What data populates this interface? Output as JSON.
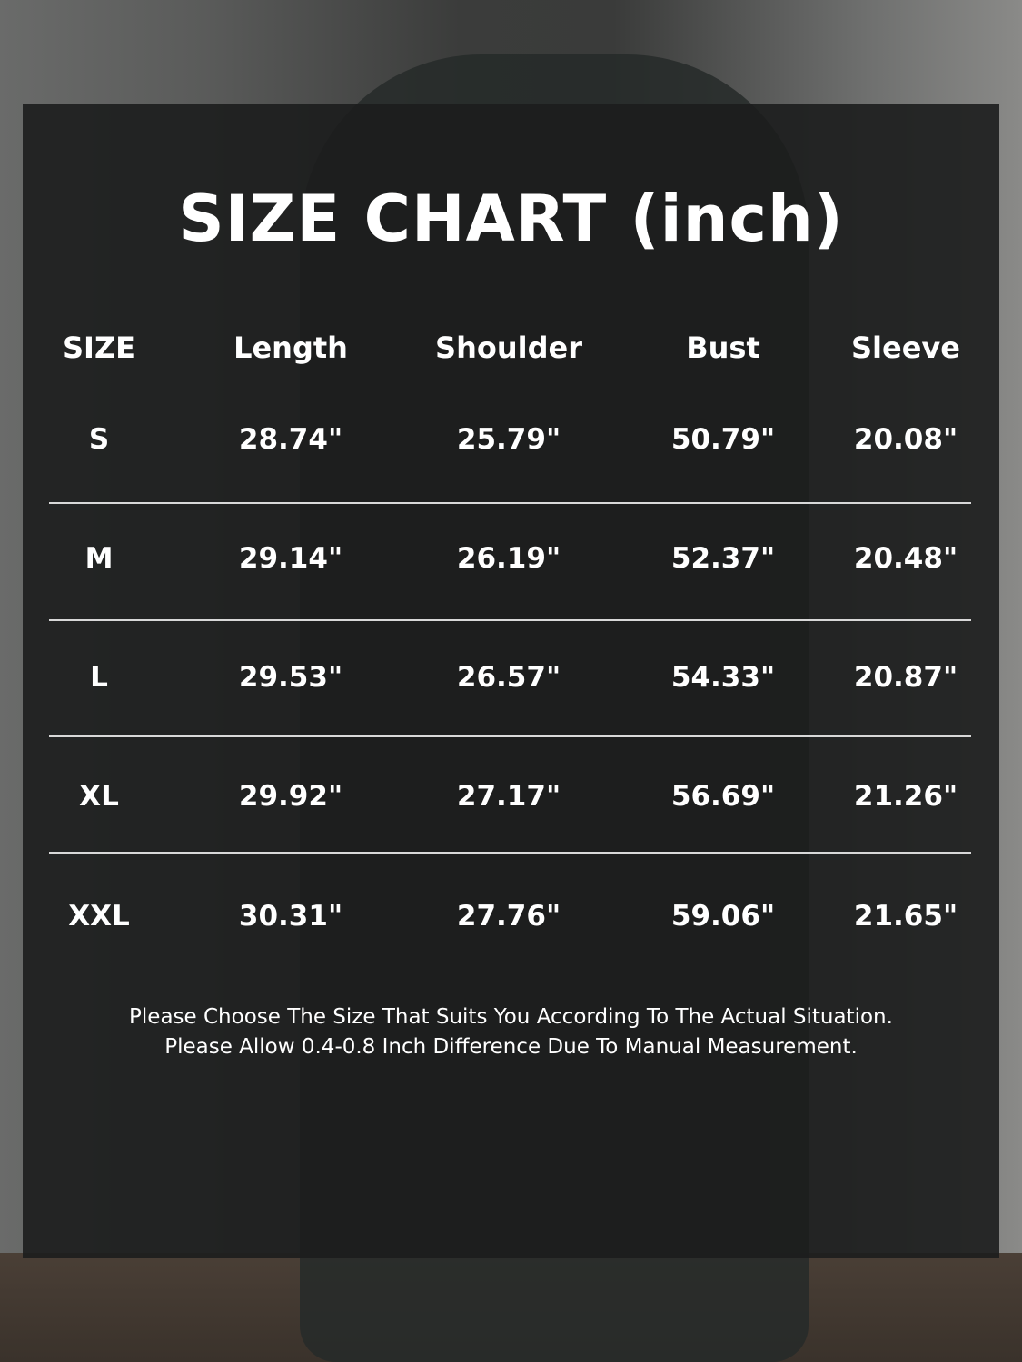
{
  "title": "SIZE CHART (inch)",
  "headers": [
    "SIZE",
    "Length",
    "Shoulder",
    "Bust",
    "Sleeve"
  ],
  "rows": [
    [
      "S",
      "28.74\"",
      "25.79\"",
      "50.79\"",
      "20.08\""
    ],
    [
      "M",
      "29.14\"",
      "26.19\"",
      "52.37\"",
      "20.48\""
    ],
    [
      "L",
      "29.53\"",
      "26.57\"",
      "54.33\"",
      "20.87\""
    ],
    [
      "XL",
      "29.92\"",
      "27.17\"",
      "56.69\"",
      "21.26\""
    ],
    [
      "XXL",
      "30.31\"",
      "27.76\"",
      "59.06\"",
      "21.65\""
    ]
  ],
  "notes": [
    "Please Choose The Size That Suits You According To The Actual Situation.",
    "Please Allow 0.4-0.8 Inch Difference Due To Manual Measurement."
  ]
}
